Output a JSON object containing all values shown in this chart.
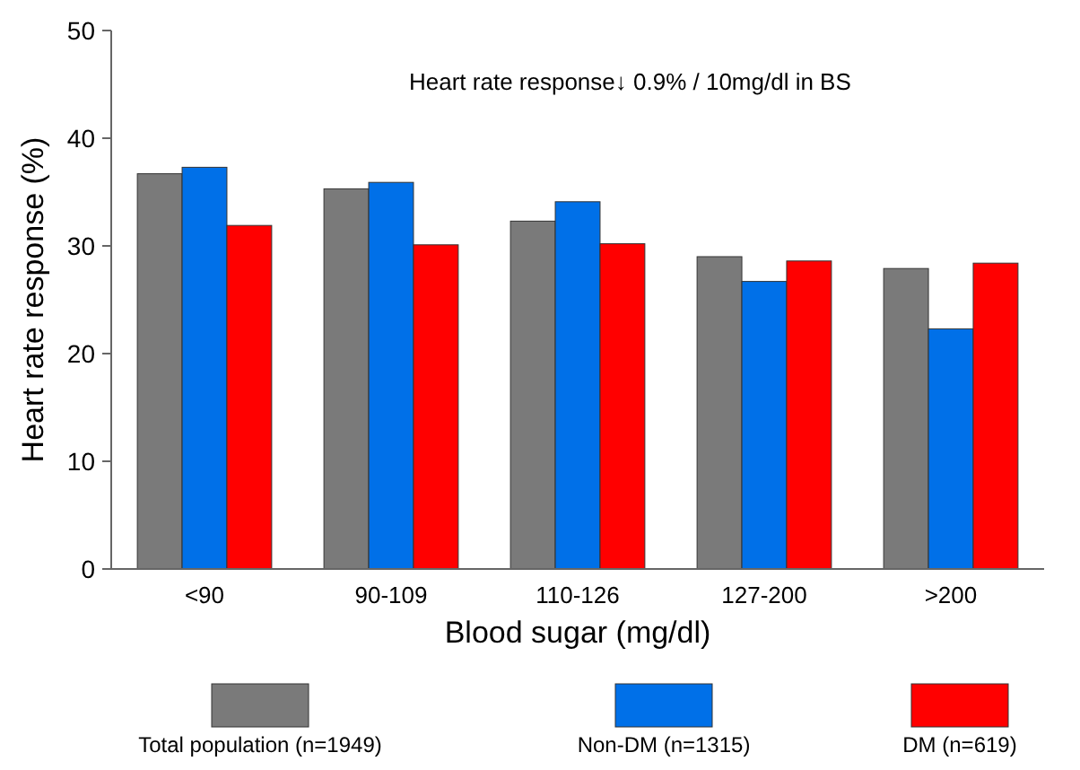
{
  "chart_data": {
    "type": "bar",
    "xlabel": "Blood sugar (mg/dl)",
    "ylabel": "Heart rate response (%)",
    "annotations": [
      "Heart rate response↓ 0.9% / 10mg/dl  in BS"
    ],
    "categories": [
      "<90",
      "90-109",
      "110-126",
      "127-200",
      ">200"
    ],
    "series": [
      {
        "name": "Total population (n=1949)",
        "color": "#7a7a7a",
        "values": [
          36.7,
          35.3,
          32.3,
          29.0,
          27.9
        ]
      },
      {
        "name": "Non-DM (n=1315)",
        "color": "#0070e8",
        "values": [
          37.3,
          35.9,
          34.1,
          26.7,
          22.3
        ]
      },
      {
        "name": "DM (n=619)",
        "color": "#ff0000",
        "values": [
          31.9,
          30.1,
          30.2,
          28.6,
          28.4
        ]
      }
    ],
    "ylim": [
      0,
      50
    ],
    "yticks": [
      0,
      10,
      20,
      30,
      40,
      50
    ],
    "grid": false,
    "legend": "bottom"
  }
}
